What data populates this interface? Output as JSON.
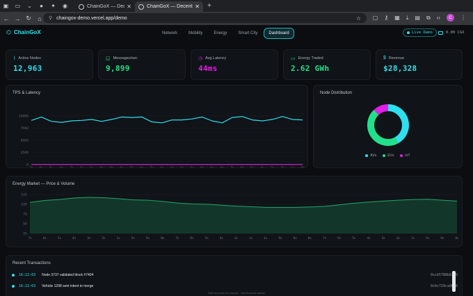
{
  "browser": {
    "tabs": [
      {
        "title": "ChainGoX — Decentralized",
        "active": false
      },
      {
        "title": "ChainGoX — Decentralized",
        "active": true
      }
    ],
    "url": "chaingox-demo.vercel.app/demo",
    "avatar_initial": "C"
  },
  "app": {
    "brand": "ChainGoX",
    "nav": [
      "Network",
      "Mobility",
      "Energy",
      "Smart City",
      "Dashboard"
    ],
    "active_nav": "Dashboard",
    "live_label": "Live Demo",
    "balance": "0.00 CGX",
    "colors": {
      "cyan": "#2de0ee",
      "green": "#22e08a",
      "magenta": "#e21ee8",
      "bg": "#0b0d10"
    }
  },
  "stats": [
    {
      "label": "Active Nodes",
      "value": "12,963",
      "icon": "activity-icon",
      "color": "#2de0ee"
    },
    {
      "label": "Messages/sec",
      "value": "9,899",
      "icon": "message-icon",
      "color": "#22e08a"
    },
    {
      "label": "Avg Latency",
      "value": "44ms",
      "icon": "clock-icon",
      "color": "#e21ee8"
    },
    {
      "label": "Energy Traded",
      "value": "2.62 GWh",
      "icon": "battery-icon",
      "color": "#22e08a"
    },
    {
      "label": "Revenue",
      "value": "$28,328",
      "icon": "dollar-icon",
      "color": "#2de0ee"
    }
  ],
  "panels": {
    "tps_title": "TPS & Latency",
    "node_title": "Node Distribution",
    "energy_title": "Energy Market — Price & Volume",
    "tx_title": "Recent Transactions"
  },
  "chart_data": [
    {
      "type": "line",
      "title": "TPS & Latency",
      "ylim": [
        0,
        10000
      ],
      "y_ticks": [
        "10000",
        "7500",
        "5000",
        "2500",
        "0"
      ],
      "x": [
        "7s",
        "6s",
        "5s",
        "4s",
        "3s",
        "2s",
        "1s",
        "0s",
        "9s",
        "8s",
        "7s",
        "6s",
        "5s",
        "4s",
        "3s",
        "2s",
        "1s",
        "0s",
        "9s",
        "8s",
        "7s",
        "6s",
        "5s",
        "4s",
        "3s",
        "2s",
        "1s",
        "0s"
      ],
      "series": [
        {
          "color": "#2de0ee",
          "values": [
            9100,
            9800,
            8900,
            8700,
            9000,
            9100,
            9300,
            8900,
            9300,
            9800,
            9700,
            9800,
            8800,
            8600,
            9200,
            9200,
            9400,
            9800,
            9000,
            8600,
            9700,
            9900,
            9200,
            9000,
            9300,
            9900,
            9300,
            9200
          ]
        },
        {
          "color": "#e21ee8",
          "values": [
            44,
            44,
            44,
            44,
            44,
            44,
            44,
            44,
            44,
            44,
            44,
            44,
            44,
            44,
            44,
            44,
            44,
            44,
            44,
            44,
            44,
            44,
            44,
            44,
            44,
            44,
            44,
            44
          ]
        }
      ],
      "grid": true
    },
    {
      "type": "pie",
      "title": "Node Distribution",
      "categories": [
        "AVs",
        "EVs",
        "IoT"
      ],
      "values": [
        42,
        46,
        12
      ],
      "colors": [
        "#2de0ee",
        "#22e08a",
        "#e21ee8"
      ],
      "legend": "bottom"
    },
    {
      "type": "area",
      "title": "Energy Market — Price & Volume",
      "ylim": [
        0,
        125
      ],
      "y_ticks": [
        "125",
        "100",
        "75",
        "50",
        "25"
      ],
      "x": [
        "7s",
        "6s",
        "5s",
        "4s",
        "3s",
        "2s",
        "1s",
        "0s",
        "9s",
        "8s",
        "7s",
        "6s",
        "5s",
        "4s",
        "3s",
        "2s",
        "1s",
        "0s",
        "9s",
        "8s",
        "7s",
        "6s",
        "5s",
        "4s",
        "3s",
        "2s",
        "1s",
        "0s",
        "9s",
        "8s"
      ],
      "values": [
        100,
        106,
        109,
        114,
        116,
        115,
        112,
        108,
        107,
        103,
        98,
        95,
        94,
        91,
        88,
        86,
        84,
        84,
        84,
        85,
        87,
        92,
        97,
        101,
        104,
        107,
        109,
        110,
        107,
        104
      ],
      "color": "#22a86a",
      "grid": true
    }
  ],
  "transactions": [
    {
      "time": "16:22:03",
      "message": "Node 3737 validated block #7404",
      "hash": "0xcb5788b63e9"
    },
    {
      "time": "16:22:03",
      "message": "Vehicle 1298 sent intent to merge",
      "hash": "0x9c729ca9b58"
    }
  ],
  "footer": "Built as proof-of-concept · Not financial advice"
}
